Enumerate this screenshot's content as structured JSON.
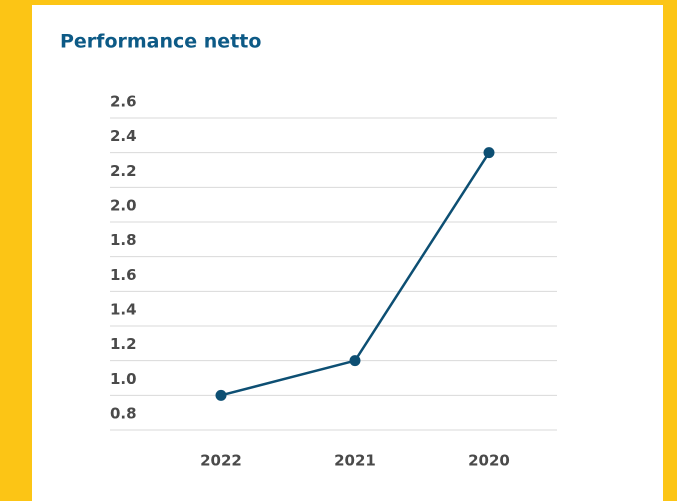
{
  "chart_data": {
    "type": "line",
    "title": "Performance netto",
    "categories": [
      "2022",
      "2021",
      "2020"
    ],
    "values": [
      1.0,
      1.2,
      2.4
    ],
    "color": "#0d4f73",
    "ylim": [
      0.8,
      2.6
    ],
    "yticks": [
      {
        "value": 0.8,
        "label": "0.8"
      },
      {
        "value": 1.0,
        "label": "1.0"
      },
      {
        "value": 1.2,
        "label": "1.2"
      },
      {
        "value": 1.4,
        "label": "1.4"
      },
      {
        "value": 1.6,
        "label": "1.6"
      },
      {
        "value": 1.8,
        "label": "1.8"
      },
      {
        "value": 2.0,
        "label": "2.0"
      },
      {
        "value": 2.2,
        "label": "2.2"
      },
      {
        "value": 2.4,
        "label": "2.4"
      },
      {
        "value": 2.6,
        "label": "2.6"
      }
    ],
    "grid": true
  }
}
